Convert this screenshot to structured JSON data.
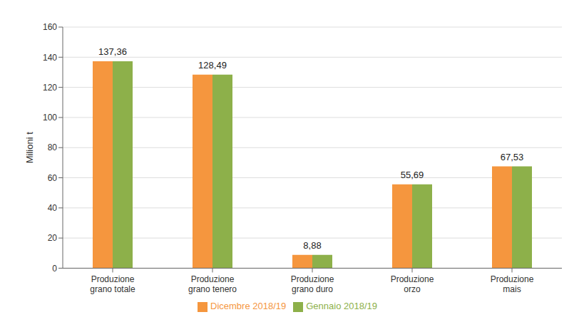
{
  "chart_data": {
    "type": "bar",
    "categories": [
      "Produzione\ngrano totale",
      "Produzione\ngrano tenero",
      "Produzione\ngrano duro",
      "Produzione\norzo",
      "Produzione\nmais"
    ],
    "series": [
      {
        "name": "Dicembre 2018/19",
        "color": "#F5963E",
        "values": [
          137.36,
          128.49,
          8.88,
          55.69,
          67.53
        ]
      },
      {
        "name": "Gennaio 2018/19",
        "color": "#8DB04A",
        "values": [
          137.36,
          128.49,
          8.88,
          55.69,
          67.53
        ]
      }
    ],
    "value_labels": [
      "137,36",
      "128,49",
      "8,88",
      "55,69",
      "67,53"
    ],
    "data_labels": true,
    "ylabel": "Milioni t",
    "ylim": [
      0,
      160
    ],
    "yticks": [
      0,
      20,
      40,
      60,
      80,
      100,
      120,
      140,
      160
    ],
    "grid": true,
    "legend": "bottom"
  }
}
